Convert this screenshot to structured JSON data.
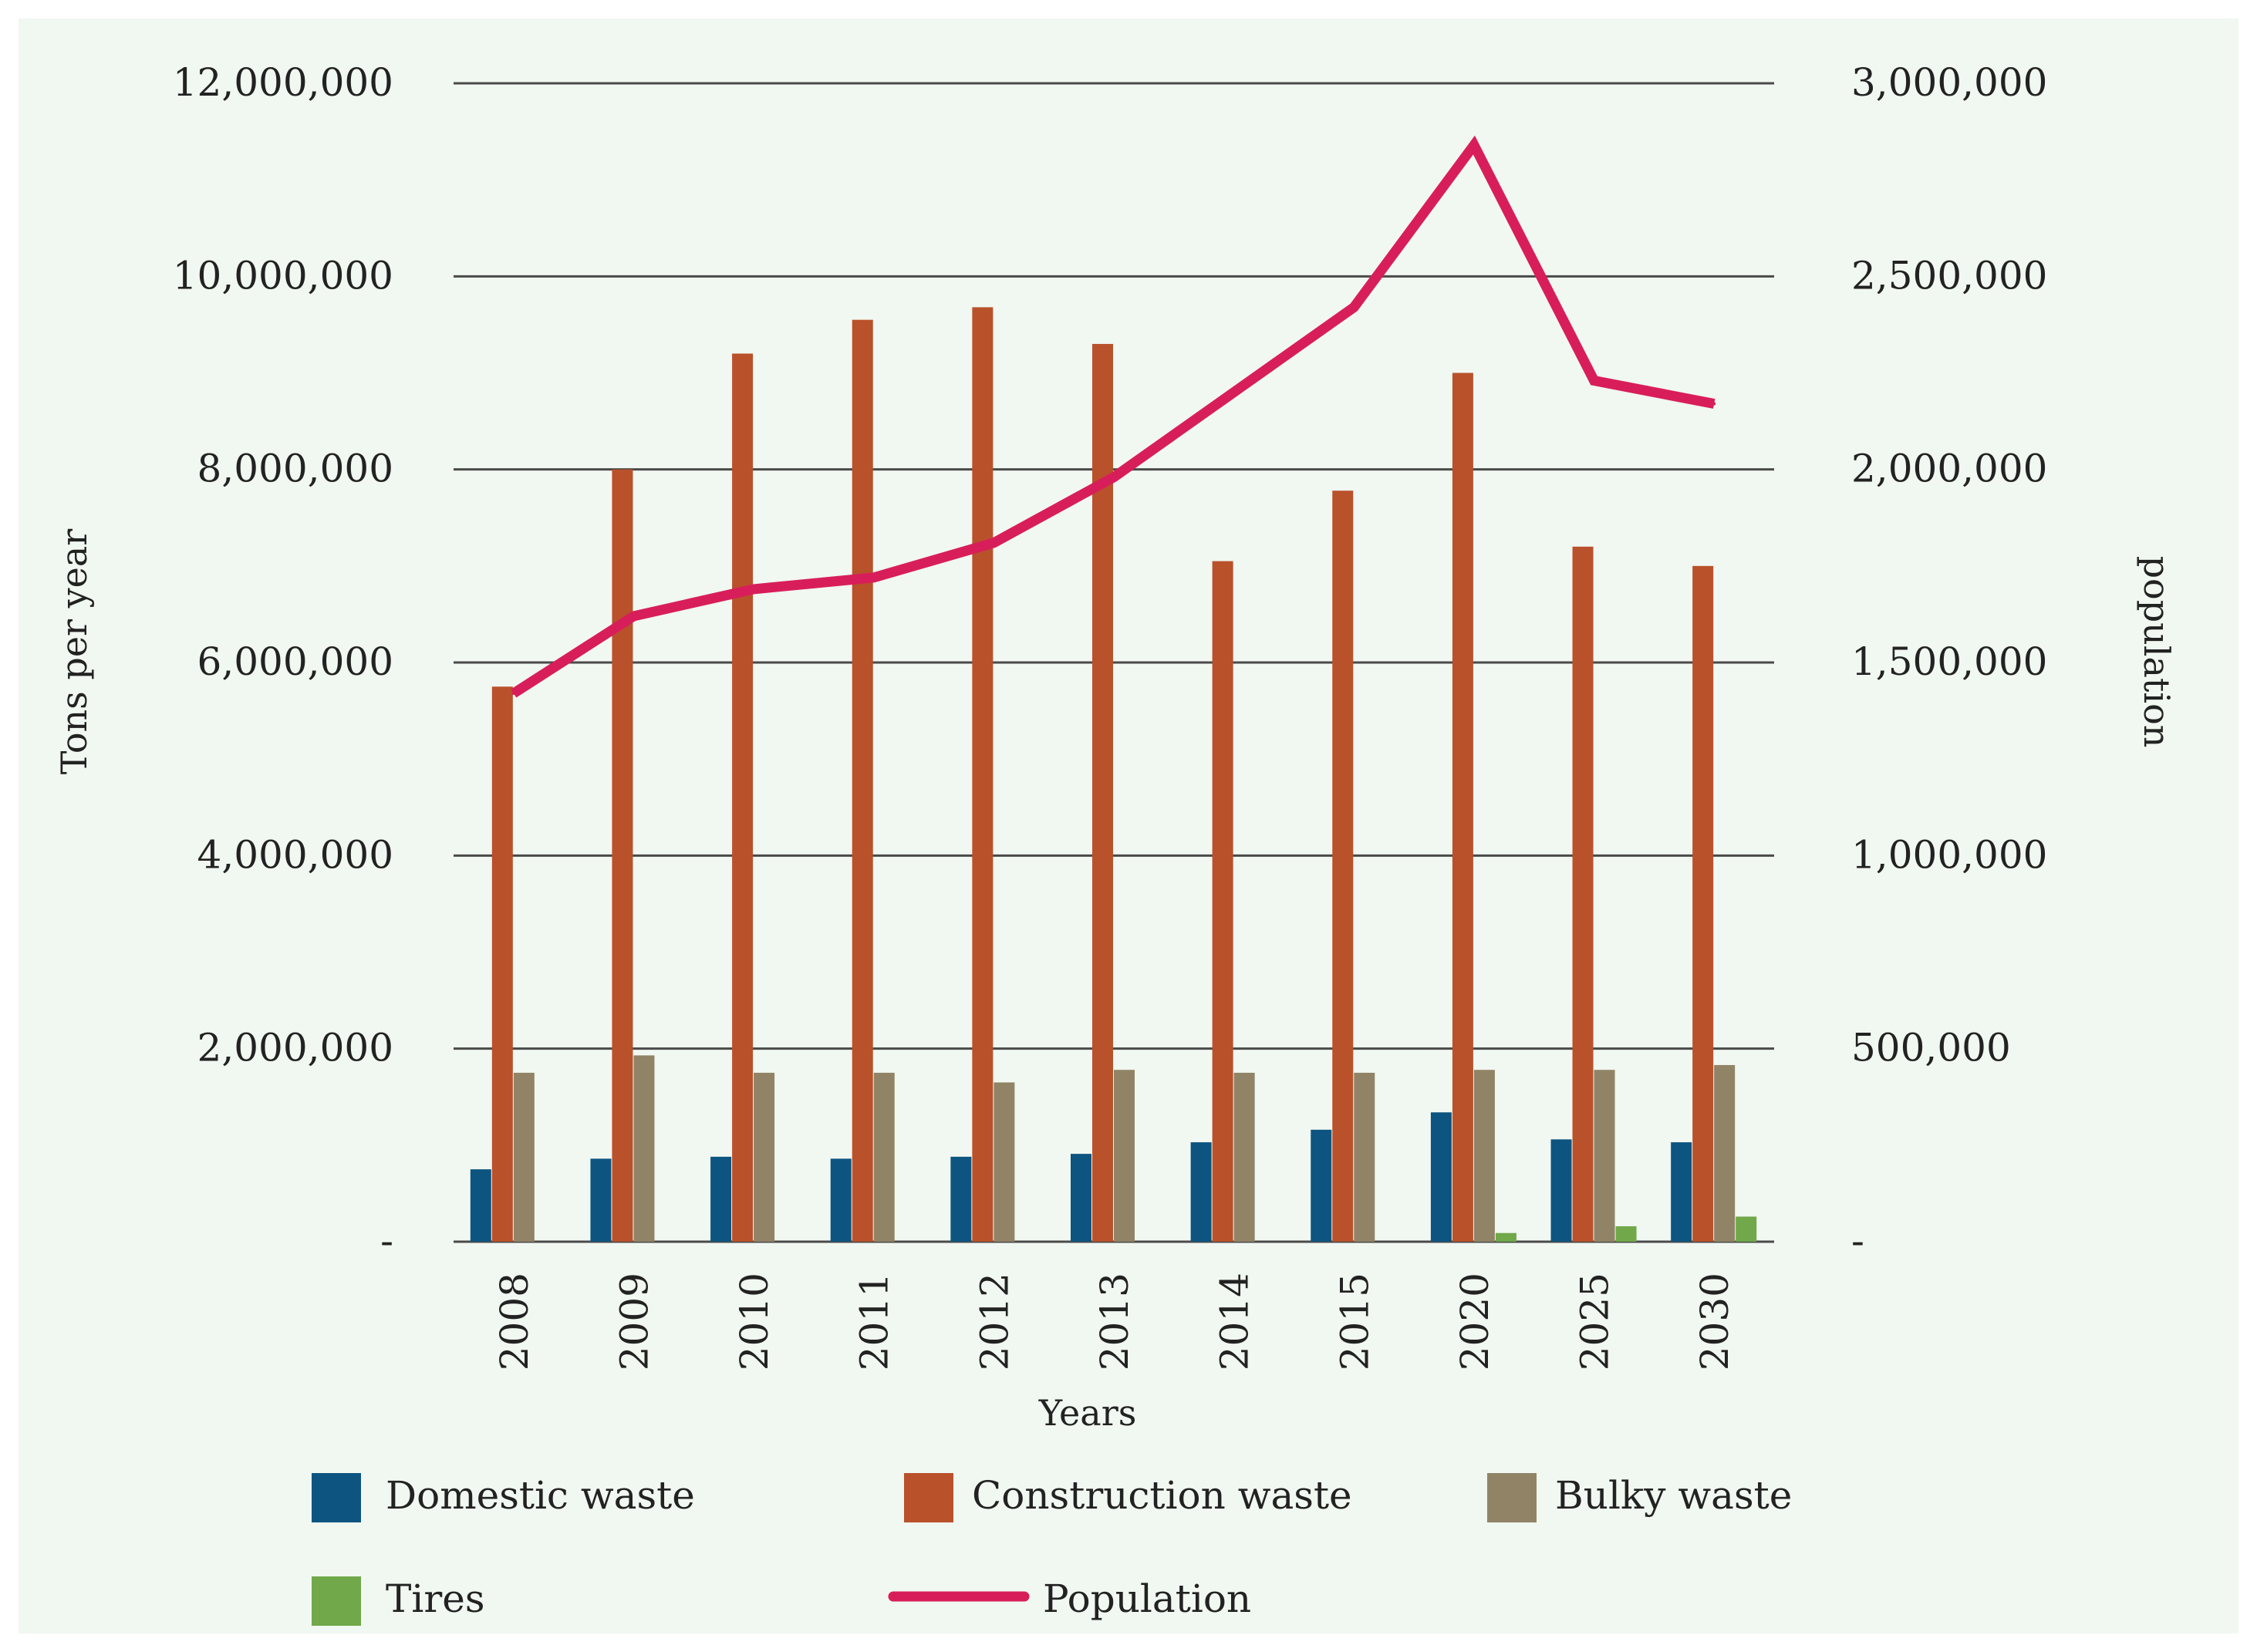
{
  "chart_data": {
    "type": "bar",
    "xlabel": "Years",
    "ylabel": "Tons per year",
    "y2label": "population",
    "categories": [
      "2008",
      "2009",
      "2010",
      "2011",
      "2012",
      "2013",
      "2014",
      "2015",
      "2020",
      "2025",
      "2030"
    ],
    "ylim": [
      0,
      12000000
    ],
    "y2lim": [
      0,
      3000000
    ],
    "yticks": [
      {
        "value": 0,
        "label": "-"
      },
      {
        "value": 2000000,
        "label": "2,000,000"
      },
      {
        "value": 4000000,
        "label": "4,000,000"
      },
      {
        "value": 6000000,
        "label": "6,000,000"
      },
      {
        "value": 8000000,
        "label": "8,000,000"
      },
      {
        "value": 10000000,
        "label": "10,000,000"
      },
      {
        "value": 12000000,
        "label": "12,000,000"
      }
    ],
    "y2ticks": [
      {
        "value": 0,
        "label": "-"
      },
      {
        "value": 500000,
        "label": "500,000"
      },
      {
        "value": 1000000,
        "label": "1,000,000"
      },
      {
        "value": 1500000,
        "label": "1,500,000"
      },
      {
        "value": 2000000,
        "label": "2,000,000"
      },
      {
        "value": 2500000,
        "label": "2,500,000"
      },
      {
        "value": 3000000,
        "label": "3,000,000"
      }
    ],
    "series": [
      {
        "name": "Domestic waste",
        "type": "bar",
        "axis": "left",
        "color": "#0d5580",
        "values": [
          750000,
          860000,
          880000,
          860000,
          880000,
          910000,
          1030000,
          1160000,
          1340000,
          1060000,
          1030000
        ]
      },
      {
        "name": "Construction waste",
        "type": "bar",
        "axis": "left",
        "color": "#b9512b",
        "values": [
          5750000,
          8000000,
          9200000,
          9550000,
          9680000,
          9300000,
          7050000,
          7780000,
          9000000,
          7200000,
          7000000
        ]
      },
      {
        "name": "Bulky waste",
        "type": "bar",
        "axis": "left",
        "color": "#918466",
        "values": [
          1750000,
          1930000,
          1750000,
          1750000,
          1650000,
          1780000,
          1750000,
          1750000,
          1780000,
          1780000,
          1830000
        ]
      },
      {
        "name": "Tires",
        "type": "bar",
        "axis": "left",
        "color": "#70a84a",
        "values": [
          0,
          0,
          0,
          0,
          0,
          0,
          0,
          0,
          90000,
          160000,
          260000
        ]
      },
      {
        "name": "Population",
        "type": "line",
        "axis": "right",
        "color": "#d81e5a",
        "values": [
          1420000,
          1620000,
          1690000,
          1720000,
          1810000,
          1980000,
          2200000,
          2420000,
          2840000,
          2230000,
          2170000
        ]
      }
    ],
    "legend": {
      "position": "bottom",
      "items": [
        {
          "label": "Domestic waste",
          "color": "#0d5580",
          "shape": "square"
        },
        {
          "label": "Construction waste",
          "color": "#b9512b",
          "shape": "square"
        },
        {
          "label": "Bulky waste",
          "color": "#918466",
          "shape": "square"
        },
        {
          "label": "Tires",
          "color": "#70a84a",
          "shape": "square"
        },
        {
          "label": "Population",
          "color": "#d81e5a",
          "shape": "line"
        }
      ]
    },
    "background": "#f1f7f1",
    "grid": true
  }
}
